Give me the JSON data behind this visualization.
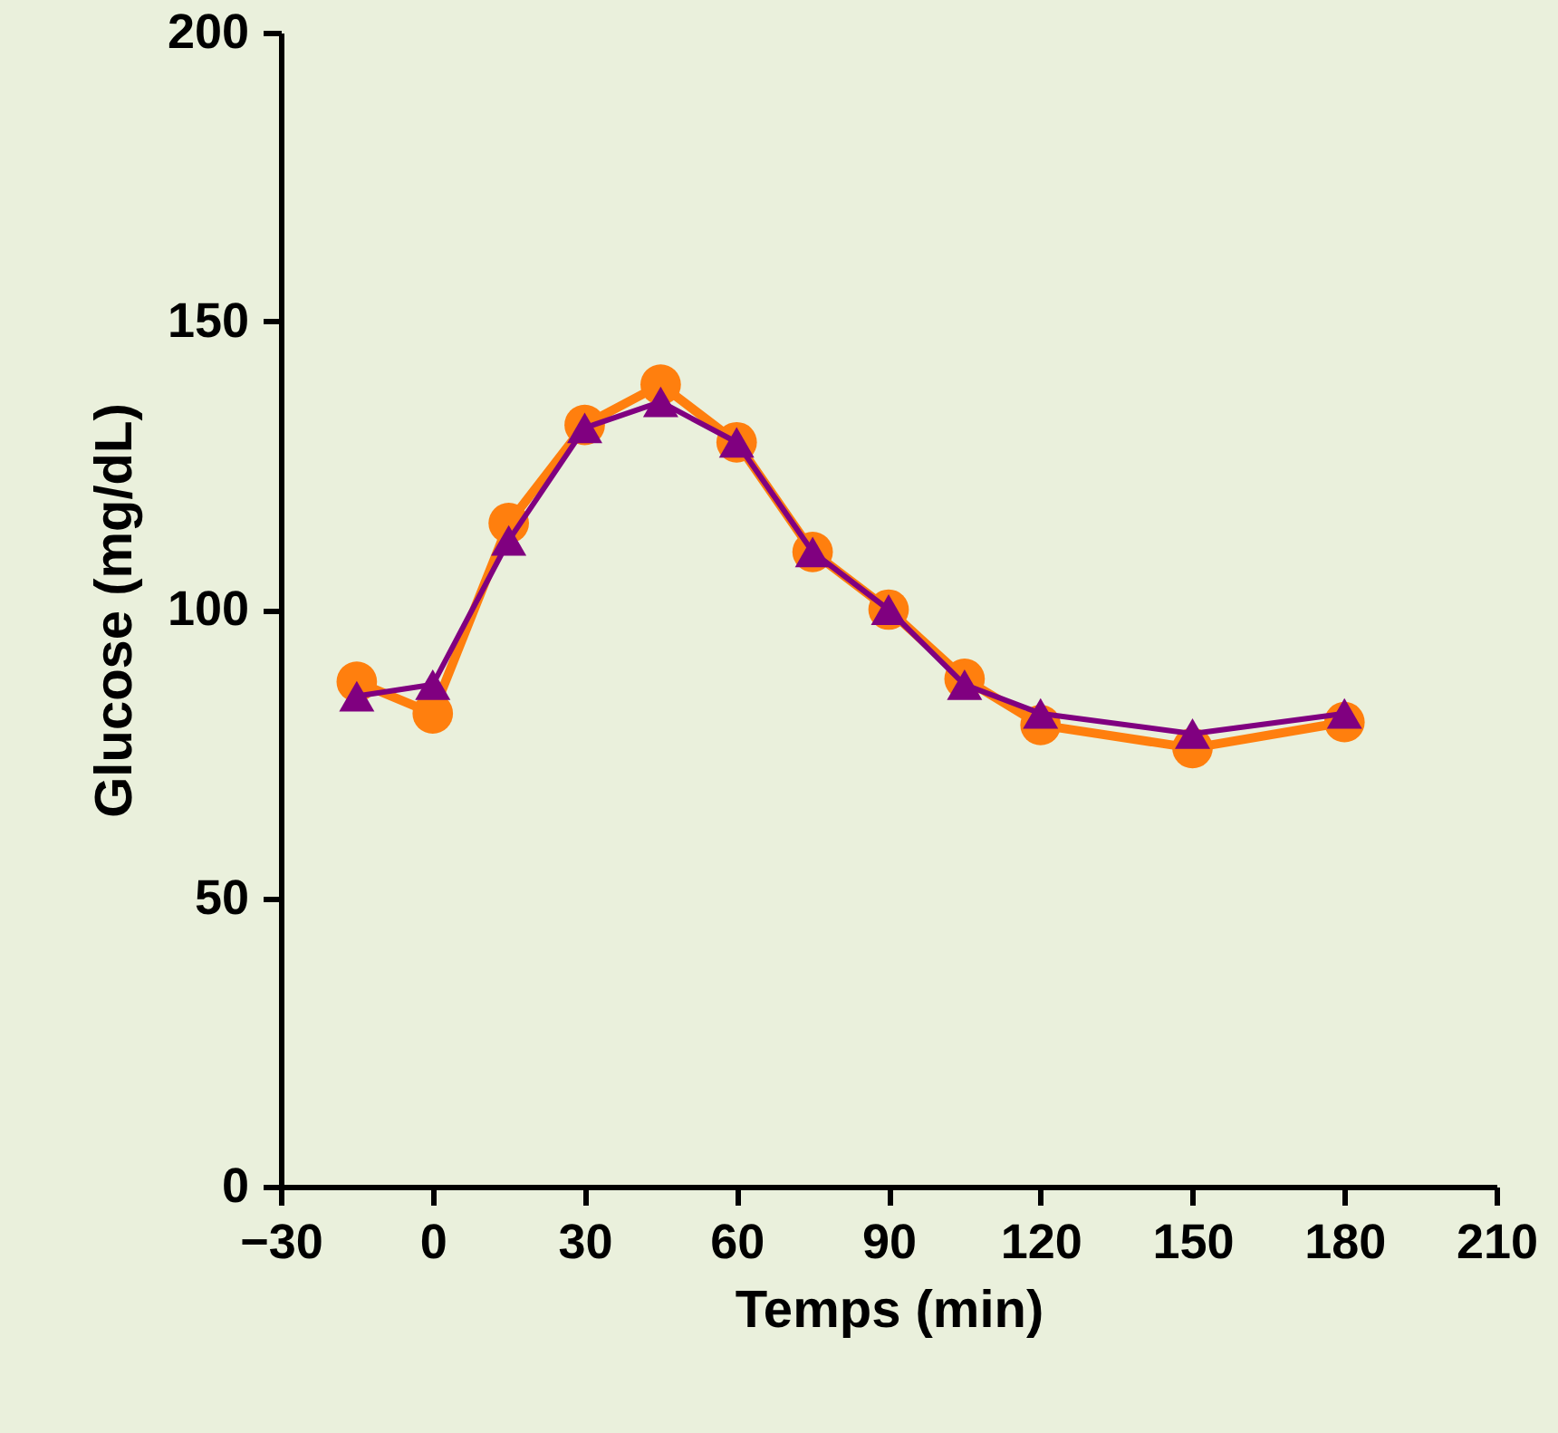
{
  "chart_data": {
    "type": "line",
    "xlabel": "Temps (min)",
    "ylabel": "Glucose (mg/dL)",
    "x": [
      -15,
      0,
      15,
      30,
      45,
      60,
      75,
      90,
      105,
      120,
      150,
      180
    ],
    "series": [
      {
        "color": "#ff7f0e",
        "marker": "circle",
        "values": [
          87.5,
          82,
          115,
          132,
          139,
          129,
          110,
          100,
          88,
          80,
          76,
          80.5
        ]
      },
      {
        "color": "#800080",
        "marker": "triangle",
        "values": [
          85,
          87,
          112,
          131.5,
          136,
          129,
          110,
          100,
          87,
          82,
          78.5,
          82
        ]
      }
    ],
    "xlim": [
      -30,
      210
    ],
    "xticks": [
      -30,
      0,
      30,
      60,
      90,
      120,
      150,
      180,
      210
    ],
    "ylim": [
      0,
      200
    ],
    "yticks": [
      0,
      50,
      100,
      150,
      200
    ],
    "grid": false,
    "line_style": "solid"
  }
}
